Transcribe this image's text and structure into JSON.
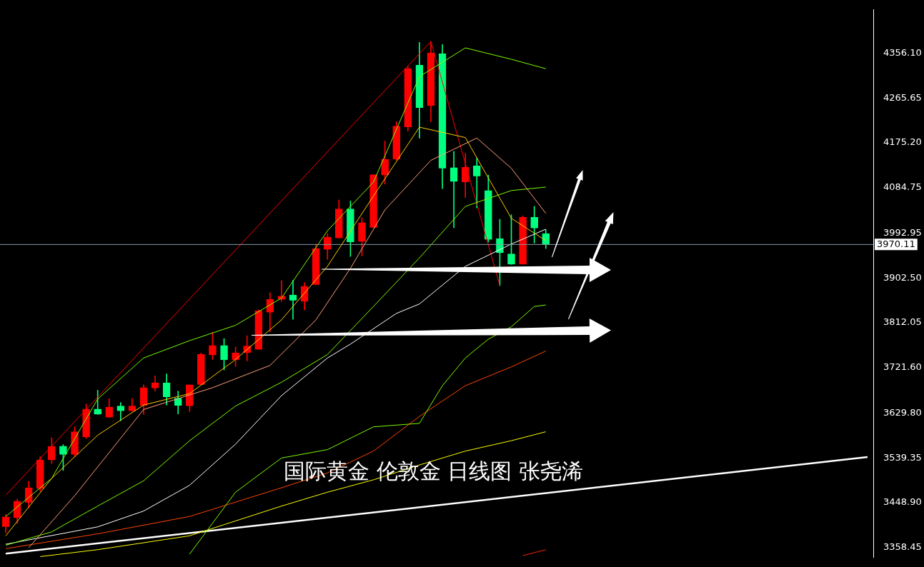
{
  "chart_data": {
    "type": "candlestick",
    "title": "国际黄金 伦敦金 日线图 张尧浠",
    "categories": [
      null,
      null,
      null,
      null,
      null,
      null,
      null,
      null,
      null,
      null,
      null,
      null,
      null,
      null,
      null,
      null,
      null,
      null,
      null,
      null,
      null,
      null,
      null,
      null,
      null,
      null,
      null,
      null,
      null,
      null,
      null,
      null,
      null,
      null,
      null,
      null,
      null,
      null,
      null,
      null,
      null,
      null,
      null,
      null,
      null,
      null,
      null,
      null,
      null,
      null,
      null,
      null,
      null,
      null,
      null,
      null,
      null,
      null,
      null,
      null,
      null,
      null,
      null,
      null,
      null,
      null,
      null,
      null,
      null,
      null,
      null,
      null,
      null,
      null,
      null,
      null
    ],
    "ohlc": [
      [
        3400,
        3425,
        3388,
        3420
      ],
      [
        3418,
        3456,
        3407,
        3452
      ],
      [
        3449,
        3492,
        3438,
        3479
      ],
      [
        3477,
        3542,
        3472,
        3535
      ],
      [
        3535,
        3580,
        3528,
        3562
      ],
      [
        3563,
        3566,
        3514,
        3546
      ],
      [
        3546,
        3602,
        3542,
        3592
      ],
      [
        3581,
        3648,
        3578,
        3638
      ],
      [
        3638,
        3676,
        3627,
        3627
      ],
      [
        3621,
        3659,
        3621,
        3642
      ],
      [
        3644,
        3651,
        3614,
        3634
      ],
      [
        3634,
        3659,
        3633,
        3644
      ],
      [
        3645,
        3687,
        3627,
        3681
      ],
      [
        3680,
        3705,
        3674,
        3691
      ],
      [
        3691,
        3709,
        3646,
        3662
      ],
      [
        3660,
        3674,
        3628,
        3645
      ],
      [
        3644,
        3687,
        3633,
        3687
      ],
      [
        3687,
        3751,
        3687,
        3748
      ],
      [
        3747,
        3793,
        3738,
        3766
      ],
      [
        3766,
        3780,
        3717,
        3737
      ],
      [
        3737,
        3763,
        3724,
        3751
      ],
      [
        3751,
        3786,
        3735,
        3765
      ],
      [
        3758,
        3838,
        3758,
        3836
      ],
      [
        3833,
        3873,
        3794,
        3859
      ],
      [
        3859,
        3897,
        3855,
        3866
      ],
      [
        3868,
        3898,
        3819,
        3857
      ],
      [
        3855,
        3893,
        3838,
        3886
      ],
      [
        3889,
        3971,
        3889,
        3962
      ],
      [
        3960,
        3992,
        3940,
        3985
      ],
      [
        3983,
        4060,
        3983,
        4042
      ],
      [
        4042,
        4058,
        3946,
        3975
      ],
      [
        3976,
        4024,
        3947,
        4014
      ],
      [
        4004,
        4111,
        4004,
        4111
      ],
      [
        4110,
        4179,
        4092,
        4142
      ],
      [
        4142,
        4218,
        4140,
        4209
      ],
      [
        4207,
        4330,
        4199,
        4325
      ],
      [
        4332,
        4378,
        4185,
        4246
      ],
      [
        4250,
        4380,
        4218,
        4357
      ],
      [
        4355,
        4374,
        4083,
        4124
      ],
      [
        4125,
        4158,
        4004,
        4097
      ],
      [
        4096,
        4154,
        4065,
        4126
      ],
      [
        4129,
        4145,
        4044,
        4108
      ],
      [
        4079,
        4110,
        3975,
        3980
      ],
      [
        3982,
        4021,
        3887,
        3953
      ],
      [
        3951,
        4030,
        3930,
        3930
      ],
      [
        3930,
        4028,
        3930,
        4025
      ],
      [
        4025,
        4047,
        3973,
        4003
      ],
      [
        3992,
        4000,
        3962,
        3970.11
      ],
      null,
      null,
      null,
      null,
      null,
      null,
      null,
      null,
      null,
      null,
      null,
      null,
      null,
      null,
      null,
      null,
      null,
      null,
      null,
      null,
      null,
      null,
      null,
      null,
      null,
      null,
      null,
      null
    ],
    "colors": [
      "#ff0000",
      "#ff0000",
      "#ff0000",
      "#ff0000",
      "#ff0000",
      "#00ff7f",
      "#ff0000",
      "#ff0000",
      "#00ff7f",
      "#ff0000",
      "#00ff7f",
      "#ff0000",
      "#ff0000",
      "#ff0000",
      "#00ff7f",
      "#00ff7f",
      "#ff0000",
      "#ff0000",
      "#ff0000",
      "#00ff7f",
      "#ff0000",
      "#ff0000",
      "#ff0000",
      "#ff0000",
      "#ff0000",
      "#00ff7f",
      "#ff0000",
      "#ff0000",
      "#ff0000",
      "#ff0000",
      "#00ff7f",
      "#ff0000",
      "#ff0000",
      "#ff0000",
      "#ff0000",
      "#ff0000",
      "#00ff7f",
      "#ff0000",
      "#00ff7f",
      "#00ff7f",
      "#ff0000",
      "#00ff7f",
      "#00ff7f",
      "#00ff7f",
      "#00ff7f",
      "#ff0000",
      "#00ff7f",
      "#00ff7f",
      null,
      null,
      null,
      null,
      null,
      null,
      null,
      null,
      null,
      null,
      null,
      null,
      null,
      null,
      null,
      null,
      null,
      null,
      null,
      null,
      null,
      null,
      null,
      null,
      null,
      null,
      null,
      null
    ],
    "series": [
      {
        "type": "line",
        "color": "#ffcc00",
        "values": [
          3382,
          null,
          null,
          null,
          3498,
          null,
          null,
          null,
          3585,
          null,
          null,
          null,
          3646,
          null,
          null,
          null,
          3669,
          null,
          null,
          null,
          3738,
          null,
          null,
          null,
          3818,
          null,
          null,
          null,
          3926,
          null,
          null,
          null,
          4068,
          null,
          null,
          null,
          4207,
          null,
          null,
          null,
          4186,
          null,
          null,
          null,
          4023,
          null,
          null,
          3978,
          null,
          null,
          null,
          null,
          null,
          null,
          null,
          null,
          null,
          null,
          null,
          null,
          null,
          null,
          null,
          null,
          null,
          null,
          null,
          null,
          null,
          null,
          null,
          null,
          null,
          null,
          null,
          null
        ]
      },
      {
        "type": "line",
        "color": "#ffa07a",
        "values": [
          null,
          null,
          3358,
          null,
          null,
          null,
          3463,
          null,
          null,
          null,
          null,
          null,
          3637,
          null,
          null,
          null,
          null,
          null,
          3681,
          null,
          null,
          null,
          null,
          3726,
          null,
          null,
          null,
          3818,
          null,
          null,
          3922,
          null,
          null,
          4040,
          null,
          null,
          null,
          4140,
          null,
          null,
          null,
          4185,
          null,
          null,
          4124,
          null,
          null,
          4033,
          null,
          null,
          null,
          null,
          null,
          null,
          null,
          null,
          null,
          null,
          null,
          null,
          null,
          null,
          null,
          null,
          null,
          null,
          null,
          null,
          null,
          null,
          null,
          null,
          null,
          null,
          null,
          null
        ]
      },
      {
        "type": "line",
        "color": "#7cfc00",
        "values": [
          3421,
          null,
          null,
          null,
          3498,
          null,
          null,
          null,
          3658,
          null,
          null,
          null,
          3741,
          null,
          null,
          null,
          3776,
          null,
          null,
          null,
          3807,
          null,
          null,
          null,
          3862,
          null,
          null,
          null,
          3998,
          null,
          null,
          null,
          4096,
          null,
          null,
          null,
          4309,
          null,
          null,
          null,
          4367,
          null,
          null,
          null,
          4344,
          null,
          null,
          4325,
          null,
          null,
          null,
          null,
          null,
          null,
          null,
          null,
          null,
          null,
          null,
          null,
          null,
          null,
          null,
          null,
          null,
          null,
          null,
          null,
          null,
          null,
          null,
          null,
          null,
          null,
          null,
          null
        ]
      },
      {
        "type": "line",
        "color": "#7cfc00",
        "values": [
          3363,
          null,
          null,
          null,
          3390,
          null,
          null,
          null,
          3442,
          null,
          null,
          null,
          3493,
          null,
          null,
          null,
          3574,
          null,
          null,
          null,
          3644,
          null,
          null,
          null,
          3692,
          null,
          null,
          null,
          3748,
          null,
          null,
          null,
          3845,
          null,
          null,
          null,
          3943,
          null,
          null,
          null,
          4047,
          null,
          null,
          null,
          4079,
          null,
          null,
          4086,
          null,
          null,
          null,
          null,
          null,
          null,
          null,
          null,
          null,
          null,
          null,
          null,
          null,
          null,
          null,
          null,
          null,
          null,
          null,
          null,
          null,
          null,
          null,
          null,
          null,
          null,
          null,
          null
        ]
      },
      {
        "type": "line",
        "color": "#7cfc00",
        "values": [
          null,
          null,
          null,
          null,
          null,
          null,
          null,
          null,
          null,
          null,
          null,
          null,
          null,
          null,
          null,
          null,
          3345,
          null,
          null,
          null,
          3470,
          null,
          null,
          null,
          3539,
          null,
          null,
          null,
          3556,
          null,
          null,
          null,
          3602,
          null,
          null,
          null,
          3609,
          null,
          3685,
          null,
          3741,
          null,
          3779,
          null,
          3804,
          null,
          3845,
          3848,
          null,
          null,
          null,
          null,
          null,
          null,
          null,
          null,
          null,
          null,
          null,
          null,
          null,
          null,
          null,
          null,
          null,
          null,
          null,
          null,
          null,
          null,
          null,
          null,
          null,
          null,
          null,
          null
        ]
      },
      {
        "type": "line",
        "color": "#ffffff",
        "values": [
          3365,
          null,
          null,
          null,
          null,
          null,
          null,
          null,
          3400,
          null,
          null,
          null,
          3432,
          null,
          null,
          null,
          3484,
          null,
          null,
          null,
          3567,
          null,
          null,
          null,
          3665,
          null,
          null,
          null,
          3741,
          null,
          3769,
          null,
          null,
          null,
          3831,
          null,
          3850,
          null,
          null,
          null,
          3926,
          null,
          null,
          null,
          3971,
          null,
          null,
          4001,
          null,
          null,
          null,
          null,
          null,
          null,
          null,
          null,
          null,
          null,
          null,
          null,
          null,
          null,
          null,
          null,
          null,
          null,
          null,
          null,
          null,
          null,
          null,
          null,
          null,
          null,
          null,
          null
        ]
      },
      {
        "type": "line",
        "color": "#ff4500",
        "values": [
          3356,
          null,
          null,
          null,
          null,
          null,
          null,
          null,
          3386,
          null,
          null,
          null,
          null,
          null,
          null,
          null,
          3421,
          null,
          null,
          null,
          null,
          null,
          null,
          null,
          3479,
          null,
          null,
          null,
          3509,
          null,
          null,
          null,
          3553,
          null,
          null,
          null,
          3623,
          null,
          null,
          null,
          3685,
          null,
          null,
          null,
          3723,
          null,
          null,
          3755,
          null,
          null,
          null,
          null,
          null,
          null,
          null,
          null,
          null,
          null,
          null,
          null,
          null,
          null,
          null,
          null,
          null,
          null,
          null,
          null,
          null,
          null,
          null,
          null,
          null,
          null,
          null,
          null
        ]
      },
      {
        "type": "line",
        "color": "#ffff00",
        "values": [
          null,
          null,
          null,
          3340,
          null,
          null,
          null,
          null,
          3354,
          null,
          null,
          null,
          null,
          null,
          null,
          null,
          3382,
          null,
          null,
          null,
          null,
          null,
          null,
          null,
          3442,
          null,
          null,
          null,
          3470,
          null,
          null,
          null,
          3495,
          null,
          null,
          null,
          3525,
          null,
          null,
          null,
          3553,
          null,
          null,
          null,
          3574,
          null,
          null,
          3592,
          null,
          null,
          null,
          null,
          null,
          null,
          null,
          null,
          null,
          null,
          null,
          null,
          null,
          null,
          null,
          null,
          null,
          null,
          null,
          null,
          null,
          null,
          null,
          null,
          null,
          null,
          null,
          null
        ]
      },
      {
        "type": "line",
        "color": "#ff2000",
        "values": [
          null,
          null,
          null,
          null,
          null,
          null,
          null,
          null,
          null,
          null,
          null,
          null,
          null,
          null,
          null,
          null,
          null,
          null,
          null,
          null,
          null,
          null,
          null,
          null,
          null,
          null,
          null,
          null,
          null,
          null,
          null,
          null,
          null,
          null,
          null,
          null,
          null,
          null,
          null,
          null,
          null,
          null,
          null,
          null,
          null,
          3342,
          null,
          3354,
          null,
          null,
          null,
          null,
          null,
          null,
          null,
          null,
          null,
          null,
          null,
          null,
          null,
          null,
          null,
          null,
          null,
          null,
          null,
          null,
          null,
          null,
          null,
          null,
          null,
          null,
          null,
          null
        ]
      },
      {
        "type": "line",
        "color": "#ff0000",
        "values": [
          3464,
          null,
          null,
          null,
          null,
          null,
          null,
          null,
          null,
          null,
          null,
          null,
          null,
          null,
          null,
          null,
          null,
          null,
          null,
          null,
          null,
          null,
          null,
          null,
          null,
          null,
          null,
          null,
          null,
          null,
          null,
          null,
          null,
          null,
          null,
          null,
          null,
          4380,
          null,
          null,
          null,
          null,
          null,
          3887,
          null,
          null,
          null,
          null,
          null,
          null,
          null,
          null,
          null,
          null,
          null,
          null,
          null,
          null,
          null,
          null,
          null,
          null,
          null,
          null,
          null,
          null,
          null,
          null,
          null,
          null,
          null,
          null,
          null,
          null,
          null,
          null
        ]
      },
      {
        "type": "line",
        "color": "#ffffff",
        "values": [
          3346,
          null,
          null,
          null,
          null,
          null,
          null,
          null,
          null,
          null,
          null,
          null,
          null,
          null,
          null,
          null,
          null,
          null,
          null,
          null,
          null,
          null,
          null,
          null,
          null,
          null,
          null,
          null,
          null,
          null,
          null,
          null,
          null,
          null,
          null,
          null,
          null,
          null,
          null,
          null,
          null,
          null,
          null,
          null,
          null,
          null,
          null,
          null,
          null,
          null,
          null,
          null,
          null,
          null,
          null,
          null,
          null,
          null,
          null,
          null,
          null,
          null,
          null,
          null,
          null,
          null,
          null,
          null,
          null,
          null,
          null,
          null,
          null,
          null,
          null,
          3541
        ]
      }
    ],
    "ylim": [
      3338.9,
      4443.8
    ],
    "yticks": [
      {
        "value": 3358.45,
        "label": "3358.45"
      },
      {
        "value": 3448.9,
        "label": "3448.90"
      },
      {
        "value": 3539.35,
        "label": "3539.35"
      },
      {
        "value": 3629.8,
        "label": "3629.80"
      },
      {
        "value": 3721.6,
        "label": "3721.60"
      },
      {
        "value": 3812.05,
        "label": "3812.05"
      },
      {
        "value": 3902.5,
        "label": "3902.50"
      },
      {
        "value": 3992.95,
        "label": "3992.95"
      },
      {
        "value": 4084.75,
        "label": "4084.75"
      },
      {
        "value": 4175.2,
        "label": "4175.20"
      },
      {
        "value": 4265.65,
        "label": "4265.65"
      },
      {
        "value": 4356.1,
        "label": "4356.10"
      }
    ],
    "ref_lines": [
      {
        "axis": "y",
        "value": 3970.11,
        "label": "3970.11",
        "color": "#8899aa"
      }
    ],
    "tick_labels": "y",
    "grid": false,
    "legend": false,
    "marker": "none"
  }
}
